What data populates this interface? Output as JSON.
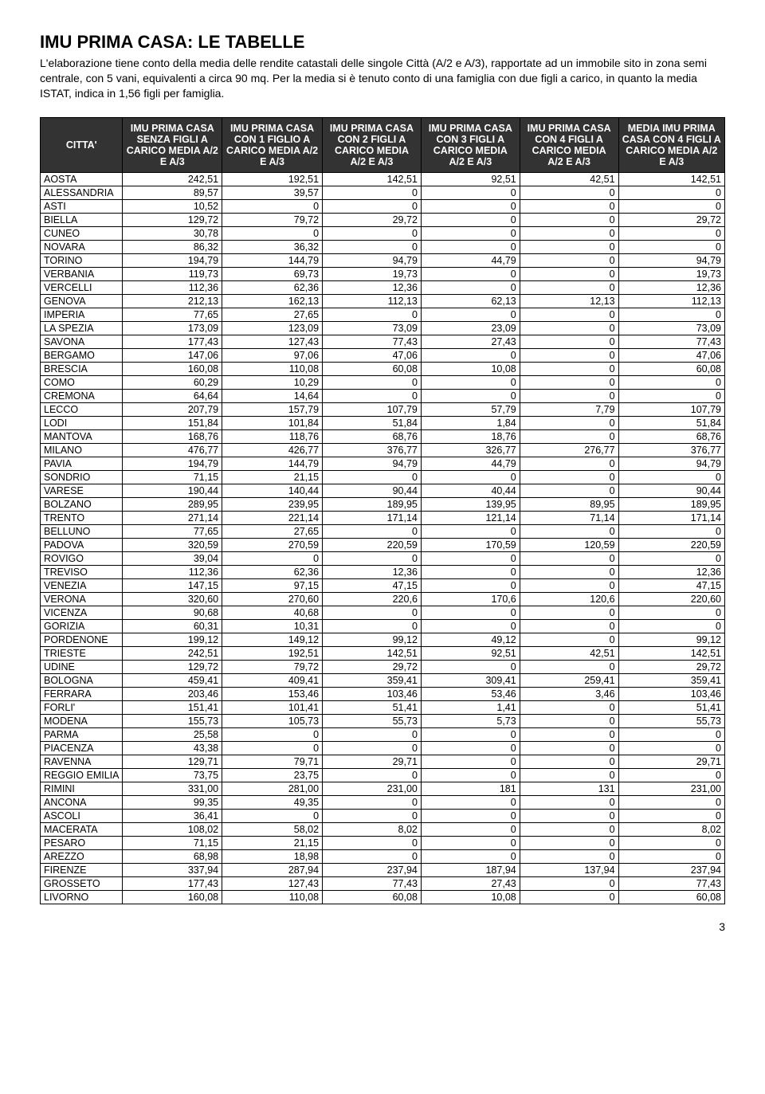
{
  "title": "IMU PRIMA CASA: LE TABELLE",
  "intro": "L'elaborazione tiene conto della media delle rendite catastali delle singole Città (A/2 e A/3), rapportate ad un immobile sito in zona semi centrale, con 5 vani, equivalenti a circa 90 mq. Per la media si è tenuto conto di una famiglia con due figli a carico, in quanto la media ISTAT, indica in 1,56 figli per famiglia.",
  "page_number": "3",
  "table": {
    "header_bg": "#333333",
    "header_color": "#ffffff",
    "border_color": "#000000",
    "columns": [
      "CITTA'",
      "IMU PRIMA CASA SENZA FIGLI A CARICO MEDIA A/2 E A/3",
      "IMU PRIMA CASA CON 1 FIGLIO A CARICO MEDIA A/2 E A/3",
      "IMU PRIMA CASA CON 2 FIGLI A CARICO MEDIA A/2 E A/3",
      "IMU PRIMA CASA CON 3 FIGLI A CARICO MEDIA A/2 E A/3",
      "IMU PRIMA CASA CON 4 FIGLI A CARICO MEDIA A/2 E A/3",
      "MEDIA IMU PRIMA CASA CON 4 FIGLI A CARICO MEDIA A/2 E A/3"
    ],
    "rows": [
      [
        "AOSTA",
        "242,51",
        "192,51",
        "142,51",
        "92,51",
        "42,51",
        "142,51"
      ],
      [
        "ALESSANDRIA",
        "89,57",
        "39,57",
        "0",
        "0",
        "0",
        "0"
      ],
      [
        "ASTI",
        "10,52",
        "0",
        "0",
        "0",
        "0",
        "0"
      ],
      [
        "BIELLA",
        "129,72",
        "79,72",
        "29,72",
        "0",
        "0",
        "29,72"
      ],
      [
        "CUNEO",
        "30,78",
        "0",
        "0",
        "0",
        "0",
        "0"
      ],
      [
        "NOVARA",
        "86,32",
        "36,32",
        "0",
        "0",
        "0",
        "0"
      ],
      [
        "TORINO",
        "194,79",
        "144,79",
        "94,79",
        "44,79",
        "0",
        "94,79"
      ],
      [
        "VERBANIA",
        "119,73",
        "69,73",
        "19,73",
        "0",
        "0",
        "19,73"
      ],
      [
        "VERCELLI",
        "112,36",
        "62,36",
        "12,36",
        "0",
        "0",
        "12,36"
      ],
      [
        "GENOVA",
        "212,13",
        "162,13",
        "112,13",
        "62,13",
        "12,13",
        "112,13"
      ],
      [
        "IMPERIA",
        "77,65",
        "27,65",
        "0",
        "0",
        "0",
        "0"
      ],
      [
        "LA SPEZIA",
        "173,09",
        "123,09",
        "73,09",
        "23,09",
        "0",
        "73,09"
      ],
      [
        "SAVONA",
        "177,43",
        "127,43",
        "77,43",
        "27,43",
        "0",
        "77,43"
      ],
      [
        "BERGAMO",
        "147,06",
        "97,06",
        "47,06",
        "0",
        "0",
        "47,06"
      ],
      [
        "BRESCIA",
        "160,08",
        "110,08",
        "60,08",
        "10,08",
        "0",
        "60,08"
      ],
      [
        "COMO",
        "60,29",
        "10,29",
        "0",
        "0",
        "0",
        "0"
      ],
      [
        "CREMONA",
        "64,64",
        "14,64",
        "0",
        "0",
        "0",
        "0"
      ],
      [
        "LECCO",
        "207,79",
        "157,79",
        "107,79",
        "57,79",
        "7,79",
        "107,79"
      ],
      [
        "LODI",
        "151,84",
        "101,84",
        "51,84",
        "1,84",
        "0",
        "51,84"
      ],
      [
        "MANTOVA",
        "168,76",
        "118,76",
        "68,76",
        "18,76",
        "0",
        "68,76"
      ],
      [
        "MILANO",
        "476,77",
        "426,77",
        "376,77",
        "326,77",
        "276,77",
        "376,77"
      ],
      [
        "PAVIA",
        "194,79",
        "144,79",
        "94,79",
        "44,79",
        "0",
        "94,79"
      ],
      [
        "SONDRIO",
        "71,15",
        "21,15",
        "0",
        "0",
        "0",
        "0"
      ],
      [
        "VARESE",
        "190,44",
        "140,44",
        "90,44",
        "40,44",
        "0",
        "90,44"
      ],
      [
        "BOLZANO",
        "289,95",
        "239,95",
        "189,95",
        "139,95",
        "89,95",
        "189,95"
      ],
      [
        "TRENTO",
        "271,14",
        "221,14",
        "171,14",
        "121,14",
        "71,14",
        "171,14"
      ],
      [
        "BELLUNO",
        "77,65",
        "27,65",
        "0",
        "0",
        "0",
        "0"
      ],
      [
        "PADOVA",
        "320,59",
        "270,59",
        "220,59",
        "170,59",
        "120,59",
        "220,59"
      ],
      [
        "ROVIGO",
        "39,04",
        "0",
        "0",
        "0",
        "0",
        "0"
      ],
      [
        "TREVISO",
        "112,36",
        "62,36",
        "12,36",
        "0",
        "0",
        "12,36"
      ],
      [
        "VENEZIA",
        "147,15",
        "97,15",
        "47,15",
        "0",
        "0",
        "47,15"
      ],
      [
        "VERONA",
        "320,60",
        "270,60",
        "220,6",
        "170,6",
        "120,6",
        "220,60"
      ],
      [
        "VICENZA",
        "90,68",
        "40,68",
        "0",
        "0",
        "0",
        "0"
      ],
      [
        "GORIZIA",
        "60,31",
        "10,31",
        "0",
        "0",
        "0",
        "0"
      ],
      [
        "PORDENONE",
        "199,12",
        "149,12",
        "99,12",
        "49,12",
        "0",
        "99,12"
      ],
      [
        "TRIESTE",
        "242,51",
        "192,51",
        "142,51",
        "92,51",
        "42,51",
        "142,51"
      ],
      [
        "UDINE",
        "129,72",
        "79,72",
        "29,72",
        "0",
        "0",
        "29,72"
      ],
      [
        "BOLOGNA",
        "459,41",
        "409,41",
        "359,41",
        "309,41",
        "259,41",
        "359,41"
      ],
      [
        "FERRARA",
        "203,46",
        "153,46",
        "103,46",
        "53,46",
        "3,46",
        "103,46"
      ],
      [
        "FORLI'",
        "151,41",
        "101,41",
        "51,41",
        "1,41",
        "0",
        "51,41"
      ],
      [
        "MODENA",
        "155,73",
        "105,73",
        "55,73",
        "5,73",
        "0",
        "55,73"
      ],
      [
        "PARMA",
        "25,58",
        "0",
        "0",
        "0",
        "0",
        "0"
      ],
      [
        "PIACENZA",
        "43,38",
        "0",
        "0",
        "0",
        "0",
        "0"
      ],
      [
        "RAVENNA",
        "129,71",
        "79,71",
        "29,71",
        "0",
        "0",
        "29,71"
      ],
      [
        "REGGIO EMILIA",
        "73,75",
        "23,75",
        "0",
        "0",
        "0",
        "0"
      ],
      [
        "RIMINI",
        "331,00",
        "281,00",
        "231,00",
        "181",
        "131",
        "231,00"
      ],
      [
        "ANCONA",
        "99,35",
        "49,35",
        "0",
        "0",
        "0",
        "0"
      ],
      [
        "ASCOLI",
        "36,41",
        "0",
        "0",
        "0",
        "0",
        "0"
      ],
      [
        "MACERATA",
        "108,02",
        "58,02",
        "8,02",
        "0",
        "0",
        "8,02"
      ],
      [
        "PESARO",
        "71,15",
        "21,15",
        "0",
        "0",
        "0",
        "0"
      ],
      [
        "AREZZO",
        "68,98",
        "18,98",
        "0",
        "0",
        "0",
        "0"
      ],
      [
        "FIRENZE",
        "337,94",
        "287,94",
        "237,94",
        "187,94",
        "137,94",
        "237,94"
      ],
      [
        "GROSSETO",
        "177,43",
        "127,43",
        "77,43",
        "27,43",
        "0",
        "77,43"
      ],
      [
        "LIVORNO",
        "160,08",
        "110,08",
        "60,08",
        "10,08",
        "0",
        "60,08"
      ]
    ]
  }
}
